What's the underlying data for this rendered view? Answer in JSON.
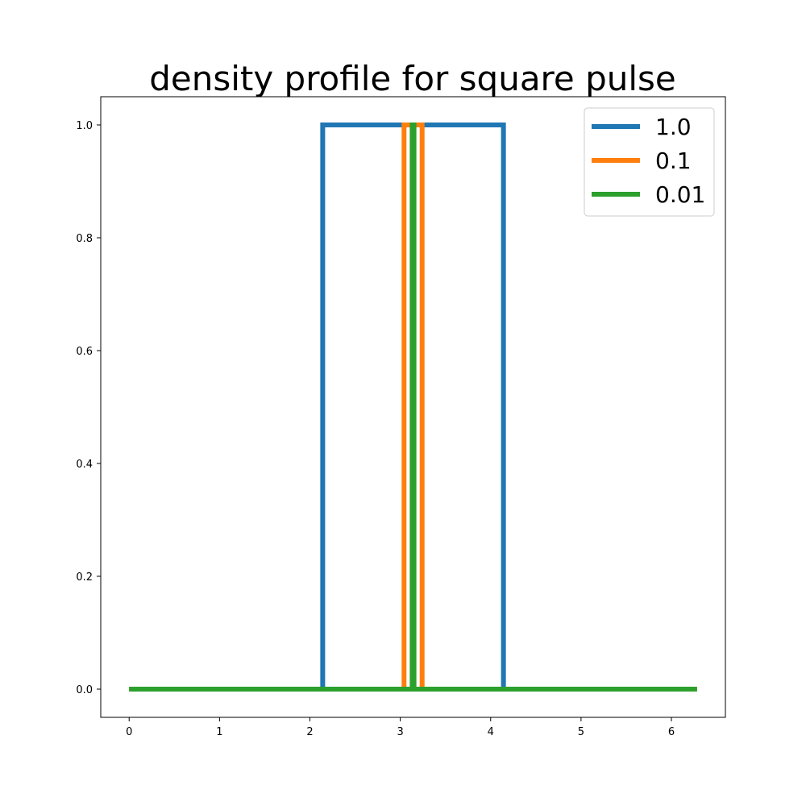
{
  "chart_data": {
    "type": "line",
    "title": "density profile for square pulse",
    "xlabel": "",
    "ylabel": "",
    "xlim": [
      -0.3142,
      6.5973
    ],
    "ylim": [
      -0.05,
      1.05
    ],
    "xticks": [
      0,
      1,
      2,
      3,
      4,
      5,
      6
    ],
    "yticks": [
      0.0,
      0.2,
      0.4,
      0.6,
      0.8,
      1.0
    ],
    "xtick_labels": [
      "0",
      "1",
      "2",
      "3",
      "4",
      "5",
      "6"
    ],
    "ytick_labels": [
      "0.0",
      "0.2",
      "0.4",
      "0.6",
      "0.8",
      "1.0"
    ],
    "grid": false,
    "legend_position": "top-right",
    "series": [
      {
        "name": "1.0",
        "color": "#1f77b4",
        "x": [
          0,
          2.1416,
          2.1416,
          4.1416,
          4.1416,
          6.2832
        ],
        "y": [
          0,
          0,
          1,
          1,
          0,
          0
        ]
      },
      {
        "name": "0.1",
        "color": "#ff7f0e",
        "x": [
          0,
          3.0416,
          3.0416,
          3.2416,
          3.2416,
          6.2832
        ],
        "y": [
          0,
          0,
          1,
          1,
          0,
          0
        ]
      },
      {
        "name": "0.01",
        "color": "#2ca02c",
        "x": [
          0,
          3.1316,
          3.1316,
          3.1516,
          3.1516,
          6.2832
        ],
        "y": [
          0,
          0,
          1,
          1,
          0,
          0
        ]
      }
    ]
  }
}
